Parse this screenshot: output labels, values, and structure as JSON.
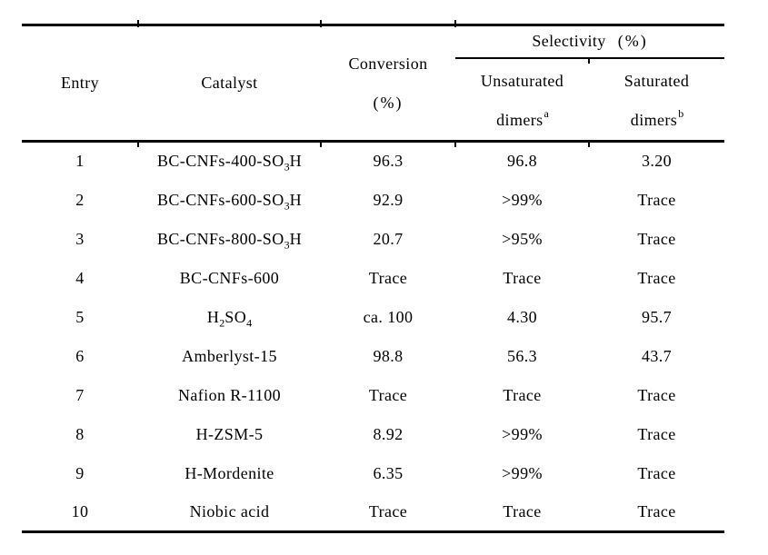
{
  "table": {
    "header": {
      "entry": "Entry",
      "catalyst": "Catalyst",
      "conversion_line1": "Conversion",
      "conversion_line2": "(%)",
      "selectivity_title": "Selectivity",
      "selectivity_unit": "(%)",
      "unsaturated_line1": "Unsaturated",
      "unsaturated_line2": "dimers",
      "unsaturated_footnote": "a",
      "saturated_line1": "Saturated",
      "saturated_line2": "dimers",
      "saturated_footnote": "b"
    },
    "rows": [
      {
        "entry": "1",
        "catalyst": "BC-CNFs-400-SO₃H",
        "conversion": "96.3",
        "unsaturated_dimers": "96.8",
        "saturated_dimers": "3.20"
      },
      {
        "entry": "2",
        "catalyst": "BC-CNFs-600-SO₃H",
        "conversion": "92.9",
        "unsaturated_dimers": ">99%",
        "saturated_dimers": "Trace"
      },
      {
        "entry": "3",
        "catalyst": "BC-CNFs-800-SO₃H",
        "conversion": "20.7",
        "unsaturated_dimers": ">95%",
        "saturated_dimers": "Trace"
      },
      {
        "entry": "4",
        "catalyst": "BC-CNFs-600",
        "conversion": "Trace",
        "unsaturated_dimers": "Trace",
        "saturated_dimers": "Trace"
      },
      {
        "entry": "5",
        "catalyst": "H₂SO₄",
        "conversion": "ca. 100",
        "unsaturated_dimers": "4.30",
        "saturated_dimers": "95.7"
      },
      {
        "entry": "6",
        "catalyst": "Amberlyst-15",
        "conversion": "98.8",
        "unsaturated_dimers": "56.3",
        "saturated_dimers": "43.7"
      },
      {
        "entry": "7",
        "catalyst": "Nafion R-1100",
        "conversion": "Trace",
        "unsaturated_dimers": "Trace",
        "saturated_dimers": "Trace"
      },
      {
        "entry": "8",
        "catalyst": "H-ZSM-5",
        "conversion": "8.92",
        "unsaturated_dimers": ">99%",
        "saturated_dimers": "Trace"
      },
      {
        "entry": "9",
        "catalyst": "H-Mordenite",
        "conversion": "6.35",
        "unsaturated_dimers": ">99%",
        "saturated_dimers": "Trace"
      },
      {
        "entry": "10",
        "catalyst": "Niobic acid",
        "conversion": "Trace",
        "unsaturated_dimers": "Trace",
        "saturated_dimers": "Trace"
      }
    ]
  }
}
